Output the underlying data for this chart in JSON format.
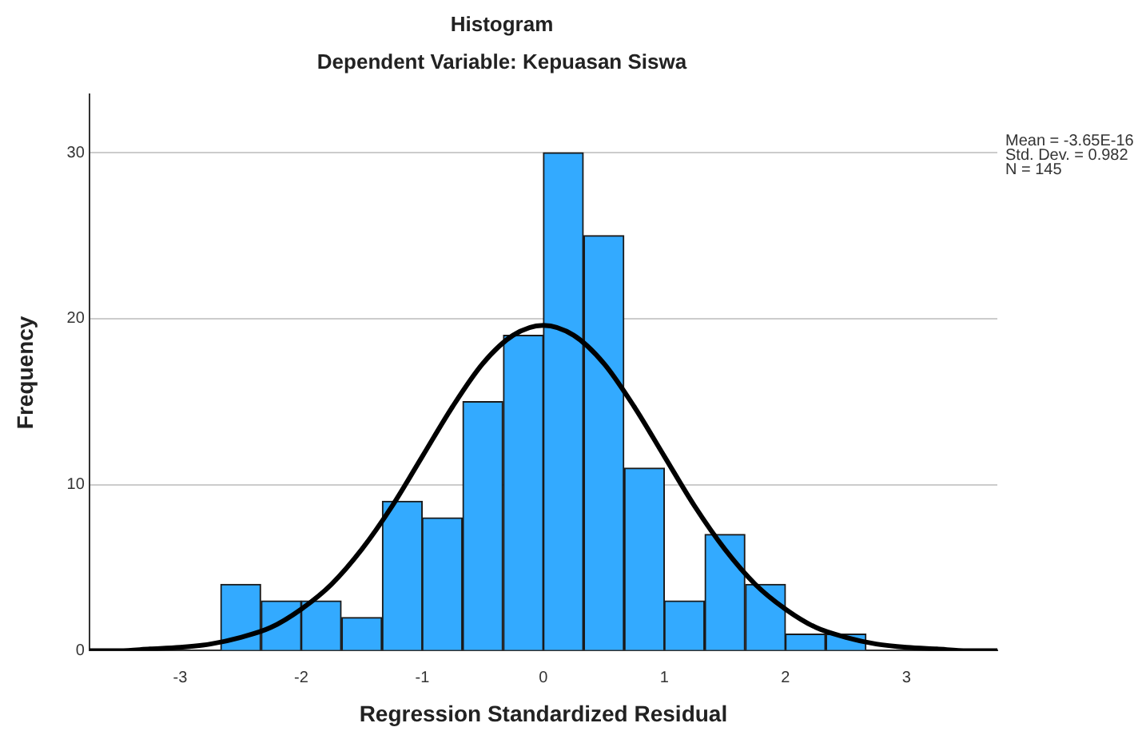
{
  "chart_data": {
    "type": "histogram",
    "title": "Histogram",
    "subtitle": "Dependent Variable: Kepuasan Siswa",
    "xlabel": "Regression Standardized Residual",
    "ylabel": "Frequency",
    "annotations": [
      "Mean = -3.65E-16",
      "Std. Dev. = 0.982",
      "N = 145"
    ],
    "bins": [
      -2.67,
      -2.33,
      -2,
      -1.67,
      -1.33,
      -1,
      -0.67,
      -0.33,
      0,
      0.33,
      0.67,
      1,
      1.33,
      1.67,
      2,
      2.33,
      2.67
    ],
    "series": [
      {
        "color": "#33aaff",
        "values": [
          4,
          3,
          3,
          2,
          9,
          8,
          15,
          19,
          30,
          25,
          11,
          3,
          7,
          4,
          1,
          1
        ]
      },
      {
        "type": "line",
        "color": "#000000",
        "x": [
          -3.75,
          -3.5,
          -3.25,
          -3,
          -2.75,
          -2.5,
          -2.25,
          -2,
          -1.75,
          -1.5,
          -1.25,
          -1,
          -0.75,
          -0.5,
          -0.25,
          0,
          0.25,
          0.5,
          0.75,
          1,
          1.25,
          1.5,
          1.75,
          2,
          2.25,
          2.5,
          2.75,
          3,
          3.25,
          3.5,
          3.75
        ],
        "values": [
          0,
          0,
          0.1,
          0.2,
          0.4,
          0.8,
          1.4,
          2.5,
          4,
          6.1,
          8.7,
          11.7,
          14.7,
          17.3,
          19,
          19.6,
          19,
          17.3,
          14.7,
          11.7,
          8.7,
          6.1,
          4,
          2.5,
          1.4,
          0.8,
          0.4,
          0.2,
          0.1,
          0,
          0
        ]
      }
    ],
    "xlim": [
      -3.75,
      3.75
    ],
    "xticks": [
      -3,
      -2,
      -1,
      0,
      1,
      2,
      3
    ],
    "ylim": [
      0,
      33.5
    ],
    "yticks": [
      0,
      10,
      20,
      30
    ],
    "grid": "y",
    "legend": false
  }
}
